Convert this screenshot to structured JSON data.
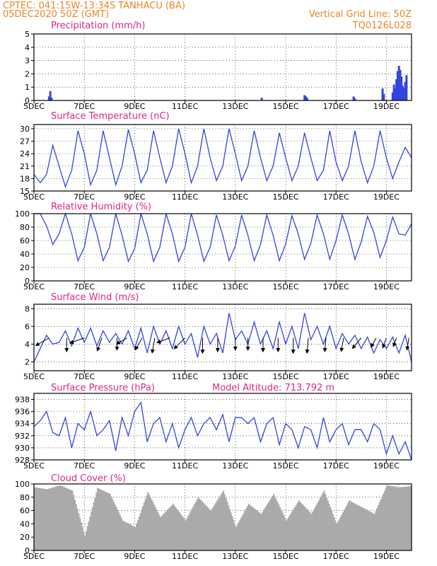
{
  "header": {
    "line1": "CPTEC:   041:15W-13:34S   TANHACU (BA)",
    "line2": "05DEC2020 50Z (GMT)",
    "vgrid": "Vertical Grid Line: 50Z",
    "code": "TQ0126L028"
  },
  "colors": {
    "series": "#3344dd",
    "cloud": "#aaaaaa",
    "title": "#e0248a",
    "header": "#e8852a"
  },
  "x_axis": {
    "start_day": 5,
    "end_day": 20,
    "tick_days": [
      5,
      7,
      9,
      11,
      13,
      15,
      17,
      19
    ],
    "tick_labels": [
      "5DEC",
      "7DEC",
      "9DEC",
      "11DEC",
      "13DEC",
      "15DEC",
      "17DEC",
      "19DEC"
    ]
  },
  "chart_data": [
    {
      "id": "precip",
      "type": "bar",
      "title": "Precipitation (mm/h)",
      "ylim": [
        0,
        5
      ],
      "yticks": [
        0,
        1,
        2,
        3,
        4,
        5
      ],
      "x": [
        5.6,
        5.65,
        5.7,
        14.05,
        15.75,
        15.8,
        15.85,
        17.7,
        17.75,
        18.85,
        18.9,
        19.25,
        19.3,
        19.35,
        19.4,
        19.45,
        19.5,
        19.55,
        19.6,
        19.65,
        19.7,
        19.75,
        19.8
      ],
      "values": [
        0.3,
        0.7,
        0.2,
        0.2,
        0.4,
        0.3,
        0.2,
        0.3,
        0.15,
        0.9,
        0.5,
        0.6,
        1.2,
        0.9,
        1.6,
        2.2,
        2.6,
        2.3,
        1.8,
        1.1,
        0.9,
        1.4,
        1.9
      ]
    },
    {
      "id": "temp",
      "type": "line",
      "title": "Surface Temperature (nC)",
      "ylim": [
        15,
        31
      ],
      "yticks": [
        15,
        18,
        21,
        24,
        27,
        30
      ],
      "x": [
        5,
        5.25,
        5.5,
        5.75,
        6,
        6.25,
        6.5,
        6.75,
        7,
        7.25,
        7.5,
        7.75,
        8,
        8.25,
        8.5,
        8.75,
        9,
        9.25,
        9.5,
        9.75,
        10,
        10.25,
        10.5,
        10.75,
        11,
        11.25,
        11.5,
        11.75,
        12,
        12.25,
        12.5,
        12.75,
        13,
        13.25,
        13.5,
        13.75,
        14,
        14.25,
        14.5,
        14.75,
        15,
        15.25,
        15.5,
        15.75,
        16,
        16.25,
        16.5,
        16.75,
        17,
        17.25,
        17.5,
        17.75,
        18,
        18.25,
        18.5,
        18.75,
        19,
        19.25,
        19.5,
        19.75,
        20
      ],
      "values": [
        19,
        17,
        19,
        26,
        21,
        16,
        20,
        29.5,
        24,
        16.5,
        20,
        29.5,
        23,
        16.5,
        21,
        29.8,
        24,
        17,
        20,
        29.5,
        23,
        17,
        21,
        30,
        24,
        17,
        21,
        30,
        23,
        17.5,
        21,
        30,
        24,
        17.5,
        21,
        29.5,
        23,
        17.5,
        21,
        29,
        23,
        17.5,
        21,
        29,
        23,
        17.5,
        20,
        29.5,
        22,
        17.5,
        21,
        29.5,
        22,
        17,
        21,
        29.5,
        23,
        18,
        22,
        25.5,
        23
      ]
    },
    {
      "id": "rh",
      "type": "line",
      "title": "Relative Humidity (%)",
      "ylim": [
        0,
        100
      ],
      "yticks": [
        0,
        20,
        40,
        60,
        80,
        100
      ],
      "x": [
        5,
        5.25,
        5.5,
        5.75,
        6,
        6.25,
        6.5,
        6.75,
        7,
        7.25,
        7.5,
        7.75,
        8,
        8.25,
        8.5,
        8.75,
        9,
        9.25,
        9.5,
        9.75,
        10,
        10.25,
        10.5,
        10.75,
        11,
        11.25,
        11.5,
        11.75,
        12,
        12.25,
        12.5,
        12.75,
        13,
        13.25,
        13.5,
        13.75,
        14,
        14.25,
        14.5,
        14.75,
        15,
        15.25,
        15.5,
        15.75,
        16,
        16.25,
        16.5,
        16.75,
        17,
        17.25,
        17.5,
        17.75,
        18,
        18.25,
        18.5,
        18.75,
        19,
        19.25,
        19.5,
        19.75,
        20
      ],
      "values": [
        100,
        100,
        82,
        54,
        70,
        100,
        70,
        30,
        50,
        100,
        70,
        30,
        50,
        100,
        68,
        29,
        48,
        100,
        70,
        29,
        50,
        100,
        70,
        29,
        50,
        100,
        68,
        29,
        50,
        98,
        68,
        30,
        52,
        98,
        68,
        30,
        54,
        98,
        68,
        30,
        55,
        97,
        70,
        32,
        56,
        98,
        70,
        32,
        60,
        98,
        70,
        32,
        58,
        96,
        72,
        35,
        60,
        95,
        70,
        68,
        85
      ]
    },
    {
      "id": "wind",
      "type": "line",
      "title": "Surface Wind (m/s)",
      "ylim": [
        1,
        8.5
      ],
      "yticks": [
        2,
        4,
        6,
        8
      ],
      "x": [
        5,
        5.25,
        5.5,
        5.75,
        6,
        6.25,
        6.5,
        6.75,
        7,
        7.25,
        7.5,
        7.75,
        8,
        8.25,
        8.5,
        8.75,
        9,
        9.25,
        9.5,
        9.75,
        10,
        10.25,
        10.5,
        10.75,
        11,
        11.25,
        11.5,
        11.75,
        12,
        12.25,
        12.5,
        12.75,
        13,
        13.25,
        13.5,
        13.75,
        14,
        14.25,
        14.5,
        14.75,
        15,
        15.25,
        15.5,
        15.75,
        16,
        16.25,
        16.5,
        16.75,
        17,
        17.25,
        17.5,
        17.75,
        18,
        18.25,
        18.5,
        18.75,
        19,
        19.25,
        19.5,
        19.75,
        20
      ],
      "values": [
        2,
        3.5,
        5,
        4,
        4.2,
        5.5,
        3.8,
        5.8,
        4.2,
        5.8,
        3.8,
        5.5,
        4.2,
        5.2,
        4,
        5.5,
        3.5,
        5.8,
        3,
        6,
        4,
        5.5,
        3.5,
        6,
        4,
        5.2,
        2.5,
        6,
        4,
        5.2,
        3,
        7.5,
        4.5,
        5.5,
        4,
        6.5,
        4,
        5.5,
        3.5,
        6.5,
        4,
        6,
        3.5,
        7.5,
        4.5,
        6,
        4,
        6,
        3.5,
        5.2,
        4,
        5,
        3.5,
        4.8,
        3,
        4.5,
        3.5,
        4.8,
        3,
        5,
        2
      ],
      "arrows_x": [
        5.6,
        6.3,
        7.0,
        7.7,
        8.3,
        8.7,
        9.3,
        9.8,
        10.4,
        11.0,
        11.7,
        12.3,
        13.0,
        13.5,
        14.1,
        14.7,
        15.3,
        15.9,
        16.6,
        17.3,
        18.0,
        18.6,
        19.0,
        19.4,
        19.9
      ],
      "arrows_dir": [
        210,
        270,
        200,
        250,
        270,
        210,
        240,
        260,
        200,
        225,
        270,
        270,
        270,
        270,
        270,
        270,
        270,
        265,
        265,
        260,
        230,
        240,
        250,
        250,
        260
      ],
      "arrows_len": [
        1.0,
        0.9,
        1.0,
        0.9,
        0.8,
        0.8,
        0.9,
        1.0,
        0.9,
        1.0,
        1.0,
        0.9,
        0.8,
        0.8,
        0.9,
        0.9,
        1.0,
        1.0,
        0.9,
        0.9,
        0.9,
        0.7,
        0.7,
        0.6,
        0.8
      ]
    },
    {
      "id": "pressure",
      "type": "line",
      "title": "Surface Pressure (hPa)",
      "annotation": "Model Altitude: 713.792 m",
      "ylim": [
        928,
        939
      ],
      "yticks": [
        928,
        930,
        932,
        934,
        936,
        938
      ],
      "x": [
        5,
        5.25,
        5.5,
        5.75,
        6,
        6.25,
        6.5,
        6.75,
        7,
        7.25,
        7.5,
        7.75,
        8,
        8.25,
        8.5,
        8.75,
        9,
        9.25,
        9.5,
        9.75,
        10,
        10.25,
        10.5,
        10.75,
        11,
        11.25,
        11.5,
        11.75,
        12,
        12.25,
        12.5,
        12.75,
        13,
        13.25,
        13.5,
        13.75,
        14,
        14.25,
        14.5,
        14.75,
        15,
        15.25,
        15.5,
        15.75,
        16,
        16.25,
        16.5,
        16.75,
        17,
        17.25,
        17.5,
        17.75,
        18,
        18.25,
        18.5,
        18.75,
        19,
        19.25,
        19.5,
        19.75,
        20
      ],
      "values": [
        933.5,
        934.5,
        936,
        932.5,
        932,
        935,
        930,
        934,
        933,
        936,
        932,
        933,
        934.5,
        929.5,
        935,
        932,
        936,
        937.5,
        931,
        934,
        935,
        931,
        934,
        930,
        933,
        935,
        932,
        934,
        935,
        933,
        935.5,
        931,
        935,
        935,
        934,
        935,
        931,
        934,
        935,
        930.5,
        934,
        933,
        930,
        933.5,
        933,
        930,
        935,
        931,
        933,
        934,
        930.5,
        933,
        933,
        931,
        934,
        933,
        929,
        932,
        929,
        931,
        928
      ]
    },
    {
      "id": "cloud",
      "type": "area",
      "title": "Cloud Cover (%)",
      "ylim": [
        0,
        100
      ],
      "yticks": [
        0,
        20,
        40,
        60,
        80,
        100
      ],
      "x": [
        5,
        5.5,
        6,
        6.5,
        7,
        7.5,
        8,
        8.5,
        9,
        9.5,
        10,
        10.5,
        11,
        11.5,
        12,
        12.5,
        13,
        13.5,
        14,
        14.5,
        15,
        15.5,
        16,
        16.5,
        17,
        17.5,
        18,
        18.5,
        19,
        19.5,
        20
      ],
      "values": [
        95,
        92,
        98,
        90,
        22,
        94,
        85,
        45,
        35,
        88,
        50,
        70,
        45,
        80,
        60,
        90,
        35,
        70,
        55,
        85,
        45,
        75,
        55,
        90,
        40,
        75,
        65,
        55,
        98,
        95,
        97
      ]
    }
  ]
}
